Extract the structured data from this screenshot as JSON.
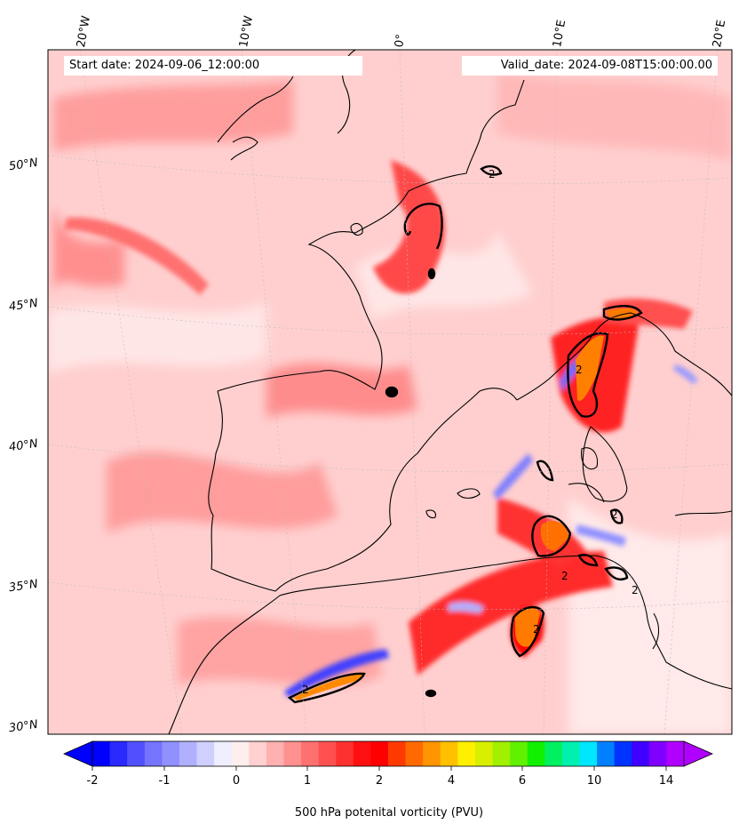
{
  "header": {
    "start_date": "Start date: 2024-09-06_12:00:00",
    "valid_date": "Valid_date: 2024-09-08T15:00:00.00"
  },
  "axes": {
    "longitude_labels": [
      "20°W",
      "10°W",
      "0°",
      "10°E",
      "20°E"
    ],
    "latitude_labels": [
      "50°N",
      "45°N",
      "40°N",
      "35°N",
      "30°N"
    ]
  },
  "contour_label": "2",
  "colorbar": {
    "label": "500 hPa potenital vorticity (PVU)",
    "ticks": [
      "-2",
      "-1",
      "0",
      "1",
      "2",
      "4",
      "6",
      "10",
      "14"
    ],
    "colors": [
      "#0000ff",
      "#2a2aff",
      "#5050ff",
      "#7474ff",
      "#9090ff",
      "#b0b0ff",
      "#d0d0ff",
      "#eeeeff",
      "#ffeeee",
      "#ffd0d0",
      "#ffb0b0",
      "#ff9090",
      "#ff7070",
      "#ff5050",
      "#ff3030",
      "#ff1010",
      "#ff0000",
      "#ff3a00",
      "#ff6a00",
      "#ff9500",
      "#ffc000",
      "#fff000",
      "#d8f000",
      "#a0f000",
      "#60f000",
      "#10f000",
      "#00f060",
      "#00f0b0",
      "#00e6ff",
      "#0080ff",
      "#0033ff",
      "#4000ff",
      "#8000ff",
      "#b000ff"
    ]
  }
}
